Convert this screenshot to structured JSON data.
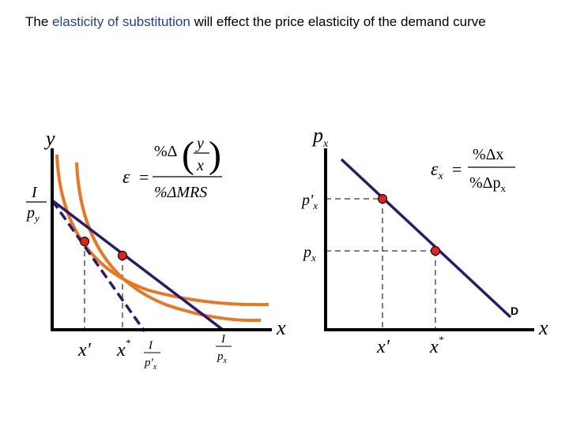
{
  "title": {
    "part1": "The ",
    "highlight": "elasticity of substitution",
    "part2": " will effect the price elasticity of the demand curve"
  },
  "colors": {
    "axis": "#000000",
    "budget_line": "#2a1a6e",
    "indifference_curve": "#e87722",
    "point_fill": "#e8201a",
    "highlight_text": "#1f3f9f",
    "guide": "#000000"
  },
  "left_panel": {
    "y_axis_label": "y",
    "x_axis_label": "x",
    "intercept_num": "I",
    "intercept_den": "p",
    "intercept_den_sub": "y",
    "formula": {
      "lhs": "ε",
      "equals": "=",
      "num_prefix": "%Δ",
      "num_frac_top": "y",
      "num_frac_bottom": "x",
      "den": "%ΔMRS"
    },
    "tick_labels": {
      "x_prime": "x'",
      "x_star": "x",
      "x_star_sup": "*",
      "i_over_p_prime_num": "I",
      "i_over_p_prime_den": "p'",
      "i_over_p_prime_den_sub": "x",
      "i_over_p_num": "I",
      "i_over_p_den": "p",
      "i_over_p_den_sub": "x"
    }
  },
  "right_panel": {
    "y_axis_label": "p",
    "y_axis_label_sub": "x",
    "x_axis_label": "x",
    "p_prime_label": "p'",
    "p_prime_sub": "x",
    "p_label": "p",
    "p_sub": "x",
    "formula": {
      "lhs": "ε",
      "lhs_sub": "x",
      "equals": "=",
      "num": "%Δx",
      "den": "%Δp",
      "den_sub": "x"
    },
    "demand_label": "D",
    "tick_labels": {
      "x_prime": "x'",
      "x_star": "x",
      "x_star_sup": "*"
    }
  }
}
